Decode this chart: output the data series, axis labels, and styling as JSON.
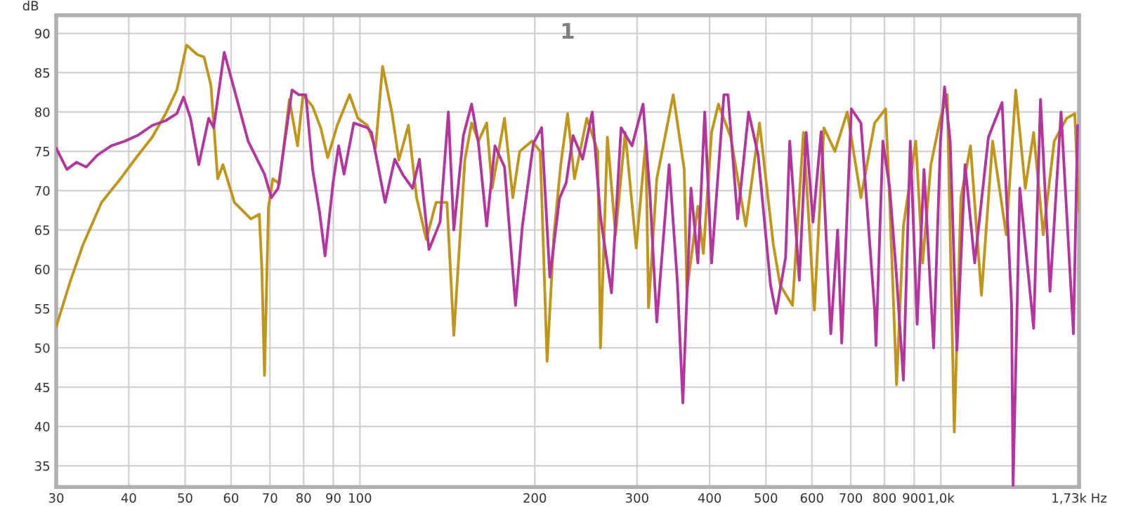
{
  "chart_data": {
    "type": "line",
    "title": "1",
    "ylabel": "dB",
    "log": "x",
    "grid": true,
    "marker": "none",
    "line_style": "solid",
    "xlim": [
      30,
      1730
    ],
    "ylim": [
      32.3,
      92.3
    ],
    "xticks": [
      30,
      40,
      50,
      60,
      70,
      80,
      90,
      100,
      200,
      300,
      400,
      500,
      600,
      700,
      800,
      900,
      {
        "value": 1000,
        "label": "1,0k"
      },
      {
        "value": 1730,
        "label": "1,73k Hz"
      }
    ],
    "yticks": [
      35,
      40,
      45,
      50,
      55,
      60,
      65,
      70,
      75,
      80,
      85,
      90
    ],
    "series": [
      {
        "color": "#c0961a",
        "x": [
          30,
          31.7,
          33.4,
          35.9,
          38.7,
          40.9,
          43.9,
          46.3,
          48.4,
          50.3,
          52.5,
          53.9,
          55.4,
          56.9,
          58.1,
          60.8,
          64.9,
          67.1,
          67.8,
          68.5,
          69.6,
          70.8,
          72.7,
          75.6,
          78.1,
          79.8,
          82.9,
          85.6,
          88.0,
          91.4,
          96.0,
          99.2,
          103.0,
          106.4,
          109.4,
          113.6,
          116.7,
          121.2,
          125.2,
          130.1,
          135.2,
          141.2,
          145.1,
          151.6,
          155.7,
          160.0,
          165.3,
          168.9,
          177.4,
          183.3,
          188.4,
          197.8,
          204.4,
          210.0,
          215.8,
          221.7,
          227.8,
          234.1,
          245.8,
          256.7,
          259.5,
          266.7,
          275.5,
          286.2,
          299.0,
          310.6,
          314.0,
          324.4,
          346.3,
          361.7,
          365.5,
          381.8,
          390.2,
          403.1,
          414.2,
          434.9,
          461.7,
          487.5,
          514.8,
          529.0,
          555.5,
          580.2,
          605.8,
          629.3,
          657.3,
          690.2,
          728.7,
          769.4,
          803.6,
          816.8,
          839.3,
          862.4,
          905.7,
          930.6,
          961.5,
          998.8,
          1026,
          1055,
          1083,
          1125,
          1175,
          1228,
          1296,
          1346,
          1398,
          1445,
          1501,
          1568,
          1647,
          1701,
          1730
        ],
        "values": [
          52.7,
          58.4,
          63.2,
          68.5,
          71.5,
          73.9,
          76.8,
          79.8,
          82.8,
          88.5,
          87.3,
          87,
          83.4,
          71.5,
          73.3,
          68.5,
          66.4,
          67,
          60,
          46.5,
          67.9,
          71.5,
          70.9,
          81.6,
          75.7,
          82.2,
          80.7,
          78,
          74.2,
          78.3,
          82.2,
          79.2,
          78.3,
          75.4,
          85.8,
          79.8,
          73.9,
          78.3,
          69.1,
          63.8,
          68.5,
          68.5,
          51.6,
          73.9,
          78.6,
          76.3,
          78.6,
          70.3,
          79.2,
          69.1,
          75,
          76.3,
          75,
          48.3,
          64.4,
          73.3,
          79.8,
          71.5,
          79.2,
          75,
          50,
          76.8,
          64.4,
          77.4,
          62.7,
          76.3,
          55.1,
          71.5,
          82.2,
          72.7,
          57.2,
          68,
          62,
          77.4,
          81,
          76.8,
          65.5,
          78.6,
          63.2,
          58,
          55.4,
          77.4,
          54.8,
          78,
          75,
          80,
          69.1,
          78.6,
          80.4,
          68.5,
          45.3,
          65.5,
          76.3,
          60.8,
          73.3,
          79.2,
          82.2,
          39.3,
          69.1,
          75.7,
          56.7,
          76.3,
          64.4,
          82.8,
          70.3,
          77.4,
          64.4,
          76.3,
          79.2,
          79.8,
          67.3
        ]
      },
      {
        "color": "#b5359e",
        "x": [
          30,
          31.3,
          32.5,
          33.8,
          35.3,
          37.3,
          39.4,
          41.6,
          43.9,
          46.3,
          48.4,
          49.7,
          51.1,
          52.8,
          54.9,
          56.0,
          58.4,
          60.8,
          64.2,
          68.5,
          70.4,
          72.3,
          76.4,
          78.5,
          80.7,
          82.9,
          85.2,
          87.1,
          89.9,
          91.9,
          93.9,
          97.6,
          103.0,
          104.7,
          110.5,
          114.8,
          118.6,
          123.2,
          126.6,
          131.5,
          137.4,
          142.0,
          145.1,
          150.7,
          155.7,
          160.0,
          165.3,
          170.8,
          177.4,
          185.3,
          190.4,
          198.9,
          205.5,
          212.3,
          220.6,
          226.5,
          232.8,
          241.8,
          251.2,
          259.5,
          271.1,
          281.6,
          294.1,
          307.2,
          315.7,
          324.4,
          340.7,
          352.0,
          359.7,
          371.5,
          381.8,
          392.3,
          403.1,
          423.3,
          430.2,
          446.9,
          466.8,
          484.9,
          509.2,
          520.5,
          540.6,
          549.5,
          570.8,
          586.5,
          602.6,
          622.5,
          646.6,
          664.4,
          675.3,
          701.6,
          728.7,
          769.4,
          773.6,
          794.9,
          816.8,
          839.3,
          862.4,
          886.2,
          910.6,
          935.7,
          972.1,
          998.8,
          1015,
          1038,
          1066,
          1101,
          1144,
          1208,
          1275,
          1324,
          1332,
          1368,
          1445,
          1485,
          1542,
          1611,
          1692,
          1720
        ],
        "values": [
          75.4,
          72.7,
          73.6,
          73,
          74.5,
          75.7,
          76.3,
          77.1,
          78.3,
          78.9,
          79.8,
          81.9,
          79.2,
          73.3,
          79.2,
          78,
          87.6,
          82.8,
          76.3,
          72.1,
          69.1,
          70.3,
          82.8,
          82.2,
          82.2,
          72.7,
          67.3,
          61.7,
          71,
          75.7,
          72.1,
          78.6,
          78,
          77.4,
          68.5,
          74,
          72,
          70.3,
          74,
          62.5,
          66,
          80,
          65,
          77,
          81,
          76,
          65.5,
          75.7,
          73,
          55.4,
          65.5,
          76,
          78,
          59,
          69,
          71,
          77,
          74,
          80,
          66.7,
          57,
          78,
          75.7,
          81,
          69.7,
          53.3,
          73.3,
          58.4,
          43,
          70.3,
          60.8,
          80,
          60.8,
          82.2,
          82.2,
          66.4,
          80,
          74.5,
          58,
          54.4,
          61.5,
          76.3,
          58.6,
          77.4,
          66,
          77.5,
          51.8,
          65,
          50.6,
          80.4,
          78.6,
          54.8,
          50.3,
          76.3,
          70.3,
          59,
          45.9,
          76.3,
          53,
          72.7,
          50,
          76.3,
          83.2,
          76.3,
          49.7,
          73.3,
          60.8,
          76.8,
          81.2,
          55.4,
          32.5,
          70.3,
          52.5,
          81.6,
          57.2,
          80,
          51.8,
          78.3
        ]
      }
    ]
  }
}
